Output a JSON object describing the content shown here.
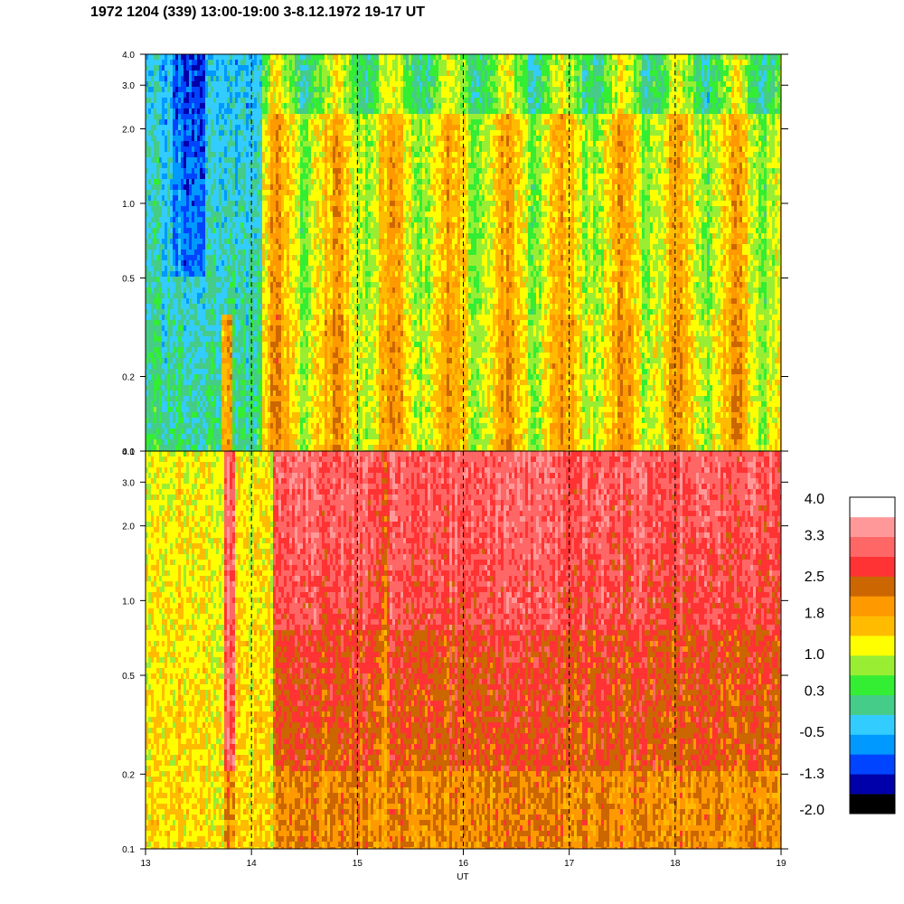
{
  "title": "1972 1204 (339) 13:00-19:00 3-8.12.1972  19-17 UT",
  "colors": {
    "levels": [
      "#000000",
      "#0000aa",
      "#0044ff",
      "#0099ff",
      "#33ccff",
      "#44cc88",
      "#33ee33",
      "#99ee33",
      "#ffff00",
      "#ffbb00",
      "#ff9900",
      "#cc6600",
      "#ff3333",
      "#ff6666",
      "#ff9999",
      "#ffffff"
    ],
    "frame": "#000000"
  },
  "chart_data": [
    {
      "type": "heatmap",
      "panel": "upper",
      "xlabel": "",
      "ylabel": "",
      "x_range": [
        13,
        19
      ],
      "y_range": [
        0.1,
        4.0
      ],
      "y_scale": "log",
      "y_ticks": [
        "0.1",
        "0.2",
        "0.5",
        "1.0",
        "2.0",
        "3.0",
        "4.0"
      ],
      "x_ticks": [],
      "dashed_lines_at": [
        14,
        15,
        16,
        17,
        18
      ],
      "grid": false
    },
    {
      "type": "heatmap",
      "panel": "lower",
      "xlabel": "UT",
      "ylabel": "",
      "x_range": [
        13,
        19
      ],
      "y_range": [
        0.1,
        4.0
      ],
      "y_scale": "log",
      "y_ticks": [
        "0.1",
        "0.2",
        "0.5",
        "1.0",
        "2.0",
        "3.0",
        "4.0"
      ],
      "x_ticks": [
        "13",
        "14",
        "15",
        "16",
        "17",
        "18",
        "19"
      ],
      "dashed_lines_at": [
        14,
        15,
        16,
        17,
        18
      ],
      "grid": false
    }
  ],
  "colorbar": {
    "labels": [
      "4.0",
      "3.3",
      "2.5",
      "1.8",
      "1.0",
      "0.3",
      "-0.5",
      "-1.3",
      "-2.0"
    ],
    "range": [
      -2.0,
      4.0
    ],
    "placement": "right"
  }
}
